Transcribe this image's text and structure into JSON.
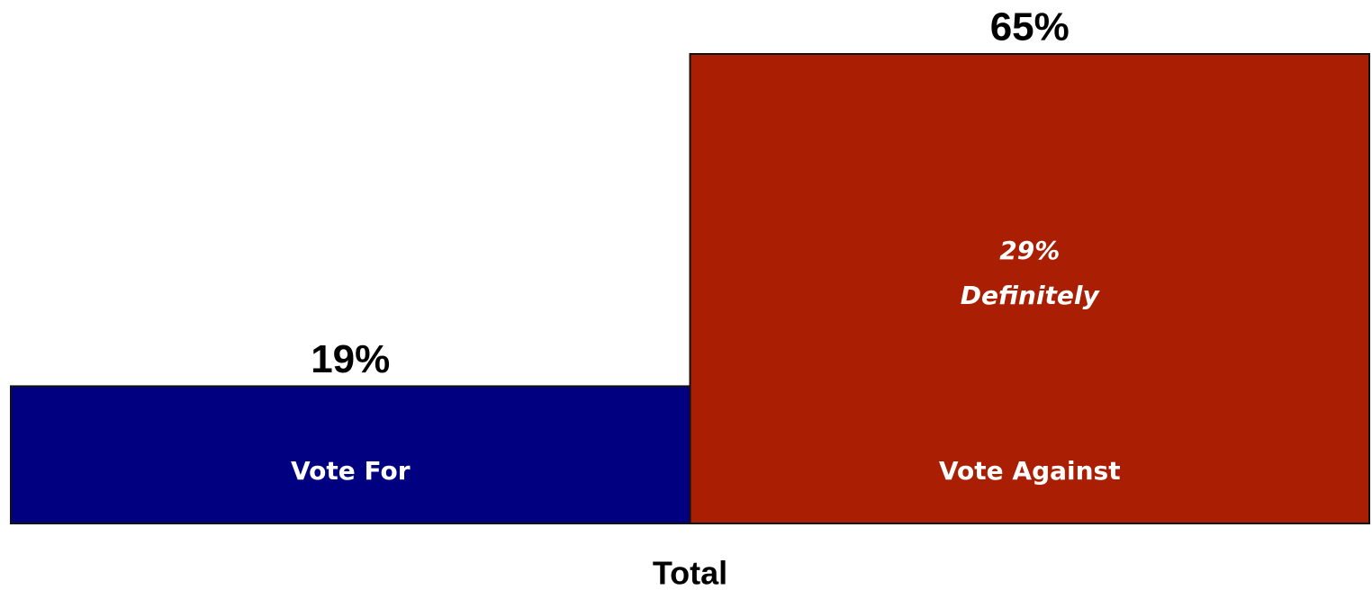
{
  "chart_data": {
    "type": "bar",
    "categories": [
      "Total"
    ],
    "series": [
      {
        "name": "Vote For",
        "color": "#000080",
        "values": [
          19
        ],
        "value_labels": [
          "19%"
        ]
      },
      {
        "name": "Vote Against",
        "color": "#aa1e04",
        "values": [
          65
        ],
        "value_labels": [
          "65%"
        ],
        "annotation": [
          "29%",
          "Definitely"
        ]
      }
    ],
    "ylim": [
      0,
      65
    ],
    "grid": false
  }
}
